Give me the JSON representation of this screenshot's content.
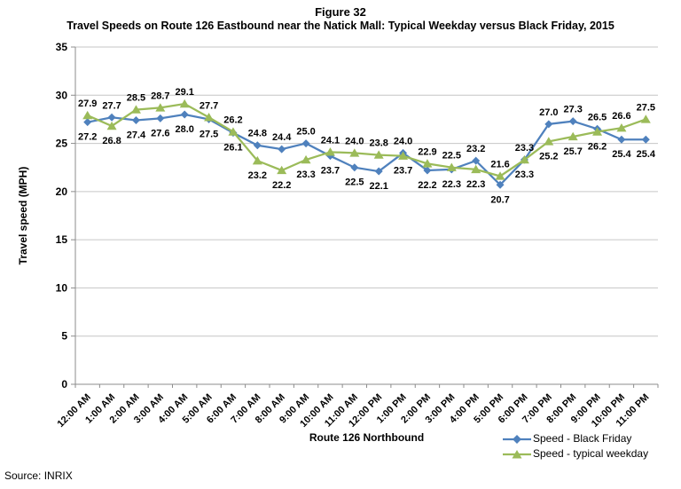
{
  "page": {
    "title": "Figure 32",
    "subtitle": "Travel Speeds on Route 126 Eastbound near the Natick Mall: Typical Weekday versus Black Friday, 2015",
    "source": "Source: INRIX"
  },
  "colors": {
    "gridline": "#C6C6C6",
    "axis": "#8C8C8C",
    "text": "#000000"
  },
  "chart_data": {
    "type": "line",
    "title": "Figure 32",
    "subtitle": "Travel Speeds on Route 126 Eastbound near the Natick Mall: Typical Weekday versus Black Friday, 2015",
    "xlabel": "Route 126 Northbound",
    "ylabel": "Travel speed (MPH)",
    "ylim": [
      0,
      35
    ],
    "ytick_step": 5,
    "grid": true,
    "legend_position": "bottom-right",
    "categories": [
      "12:00 AM",
      "1:00 AM",
      "2:00 AM",
      "3:00 AM",
      "4:00 AM",
      "5:00 AM",
      "6:00 AM",
      "7:00 AM",
      "8:00 AM",
      "9:00 AM",
      "10:00 AM",
      "11:00 AM",
      "12:00 PM",
      "1:00 PM",
      "2:00 PM",
      "3:00 PM",
      "4:00 PM",
      "5:00 PM",
      "6:00 PM",
      "7:00 PM",
      "8:00 PM",
      "9:00 PM",
      "10:00 PM",
      "11:00 PM"
    ],
    "series": [
      {
        "name": "Speed - Black Friday",
        "color": "#4F81BD",
        "marker": "diamond",
        "values": [
          27.2,
          27.7,
          27.4,
          27.6,
          28.0,
          27.5,
          26.1,
          24.8,
          24.4,
          25.0,
          23.7,
          22.5,
          22.1,
          24.0,
          22.2,
          22.3,
          23.2,
          20.7,
          23.3,
          27.0,
          27.3,
          26.5,
          25.4,
          25.4
        ],
        "label_pos": [
          "below",
          "above",
          "below",
          "below",
          "below",
          "below",
          "below",
          "above",
          "above",
          "above",
          "below",
          "below",
          "below",
          "above",
          "below",
          "below",
          "above",
          "below",
          "above",
          "above",
          "above",
          "above",
          "below",
          "below"
        ]
      },
      {
        "name": "Speed - typical weekday",
        "color": "#9BBB59",
        "marker": "triangle",
        "values": [
          27.9,
          26.8,
          28.5,
          28.7,
          29.1,
          27.7,
          26.2,
          23.2,
          22.2,
          23.3,
          24.1,
          24.0,
          23.8,
          23.7,
          22.9,
          22.5,
          22.3,
          21.6,
          23.3,
          25.2,
          25.7,
          26.2,
          26.6,
          27.5
        ],
        "label_pos": [
          "above",
          "below",
          "above",
          "above",
          "above",
          "above",
          "above",
          "below",
          "below",
          "below",
          "above",
          "above",
          "above",
          "below",
          "above",
          "above",
          "below",
          "above",
          "below",
          "below",
          "below",
          "below",
          "above",
          "above"
        ]
      }
    ]
  }
}
